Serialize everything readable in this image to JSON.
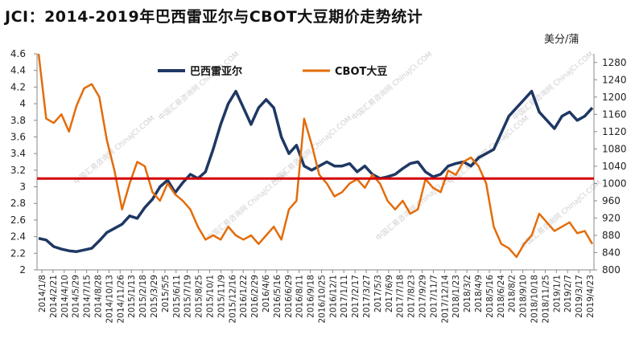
{
  "chart_data": {
    "type": "line",
    "title": "JCI：2014-2019年巴西雷亚尔与CBOT大豆期价走势统计",
    "right_axis_unit": "美分/蒲",
    "watermark": "中国汇易咨询网 ChinaJCI.COM",
    "left_axis": {
      "ylim": [
        2,
        4.6
      ],
      "ticks": [
        "2",
        "2.2",
        "2.4",
        "2.6",
        "2.8",
        "3",
        "3.2",
        "3.4",
        "3.6",
        "3.8",
        "4",
        "4.2",
        "4.4",
        "4.6"
      ]
    },
    "right_axis": {
      "ylim": [
        800,
        1300
      ],
      "ticks": [
        "800",
        "840",
        "880",
        "920",
        "960",
        "1000",
        "1040",
        "1080",
        "1120",
        "1160",
        "1200",
        "1240",
        "1280"
      ]
    },
    "x_tick_labels": [
      "2014/1/8",
      "2014/2/21",
      "2014/4/10",
      "2014/5/29",
      "2014/7/15",
      "2014/8/28",
      "2014/10/13",
      "2014/11/26",
      "2015/1/13",
      "2015/2/18",
      "2015/3/29",
      "2015/5/5",
      "2015/6/11",
      "2015/7/19",
      "2015/8/25",
      "2015/10/1",
      "2015/11/9",
      "2015/12/16",
      "2016/1/22",
      "2016/2/29",
      "2016/4/6",
      "2016/5/16",
      "2016/6/29",
      "2016/8/11",
      "2016/9/18",
      "2016/10/25",
      "2016/12/1",
      "2017/1/11",
      "2017/2/17",
      "2017/3/27",
      "2017/5/3",
      "2017/6/9",
      "2017/7/18",
      "2017/8/23",
      "2017/9/29",
      "2017/11/7",
      "2017/12/14",
      "2018/1/23",
      "2018/3/2",
      "2018/4/9",
      "2018/5/16",
      "2018/6/24",
      "2018/8/2",
      "2018/9/10",
      "2018/10/18",
      "2018/11/25",
      "2019/1/1",
      "2019/2/7",
      "2019/3/17",
      "2019/4/23"
    ],
    "reference_line": {
      "axis": "left",
      "value": 3.1,
      "color": "#d40000"
    },
    "legend": {
      "position": "top-center"
    },
    "series": [
      {
        "name": "巴西雷亚尔",
        "axis": "left",
        "color": "#1f3864",
        "values": [
          2.38,
          2.36,
          2.28,
          2.25,
          2.23,
          2.22,
          2.24,
          2.26,
          2.35,
          2.45,
          2.5,
          2.55,
          2.65,
          2.62,
          2.75,
          2.85,
          3.0,
          3.08,
          2.93,
          3.05,
          3.15,
          3.1,
          3.18,
          3.45,
          3.75,
          4.0,
          4.15,
          3.95,
          3.75,
          3.95,
          4.05,
          3.95,
          3.6,
          3.4,
          3.5,
          3.25,
          3.2,
          3.25,
          3.3,
          3.25,
          3.25,
          3.28,
          3.18,
          3.25,
          3.15,
          3.1,
          3.12,
          3.15,
          3.22,
          3.28,
          3.3,
          3.18,
          3.12,
          3.15,
          3.25,
          3.28,
          3.3,
          3.25,
          3.35,
          3.4,
          3.45,
          3.65,
          3.85,
          3.95,
          4.05,
          4.15,
          3.9,
          3.8,
          3.7,
          3.85,
          3.9,
          3.8,
          3.85,
          3.95
        ]
      },
      {
        "name": "CBOT大豆",
        "axis": "right",
        "color": "#e36c0a",
        "values": [
          1300,
          1150,
          1140,
          1160,
          1120,
          1180,
          1220,
          1230,
          1200,
          1100,
          1030,
          940,
          1000,
          1050,
          1040,
          980,
          960,
          1000,
          975,
          960,
          940,
          900,
          870,
          880,
          870,
          900,
          880,
          870,
          880,
          860,
          880,
          900,
          870,
          940,
          960,
          1150,
          1090,
          1020,
          1000,
          970,
          980,
          1000,
          1010,
          990,
          1020,
          1000,
          960,
          940,
          960,
          930,
          940,
          1010,
          990,
          980,
          1030,
          1020,
          1050,
          1060,
          1040,
          1000,
          900,
          860,
          850,
          830,
          860,
          880,
          930,
          910,
          890,
          900,
          910,
          885,
          890,
          860
        ]
      }
    ]
  }
}
